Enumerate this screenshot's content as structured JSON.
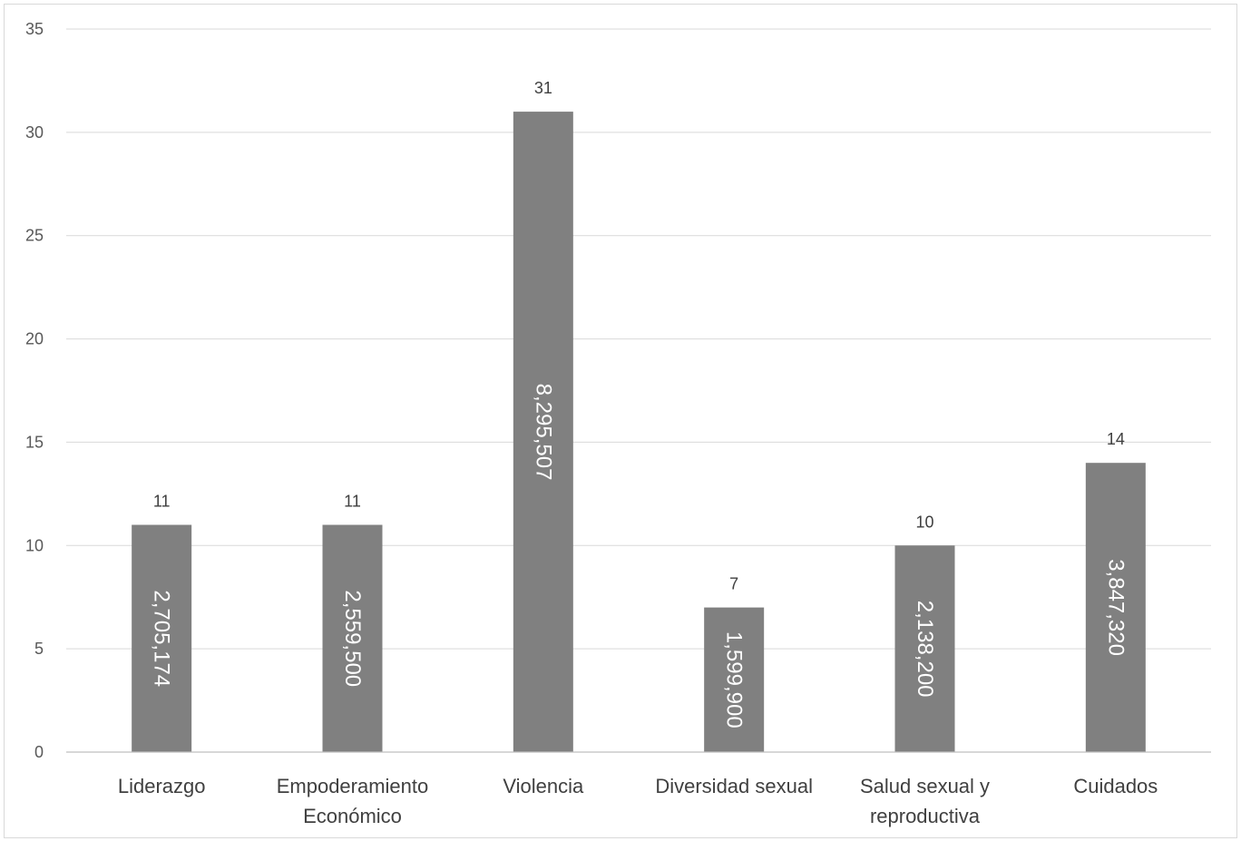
{
  "chart_data": {
    "type": "bar",
    "title": "",
    "xlabel": "",
    "ylabel": "",
    "ylim": [
      0,
      35
    ],
    "yticks": [
      0,
      5,
      10,
      15,
      20,
      25,
      30,
      35
    ],
    "grid": true,
    "categories": [
      [
        "Liderazgo"
      ],
      [
        "Empoderamiento",
        "Económico"
      ],
      [
        "Violencia"
      ],
      [
        "Diversidad sexual"
      ],
      [
        "Salud sexual y",
        "reproductiva"
      ],
      [
        "Cuidados"
      ]
    ],
    "values": [
      11,
      11,
      31,
      7,
      10,
      14
    ],
    "inner_labels": [
      "2,705,174",
      "2,559,500",
      "8,295,507",
      "1,599,900",
      "2,138,200",
      "3,847,320"
    ],
    "colors": {
      "bar": "#808080",
      "grid": "#d9d9d9",
      "axis": "#bfbfbf"
    }
  }
}
